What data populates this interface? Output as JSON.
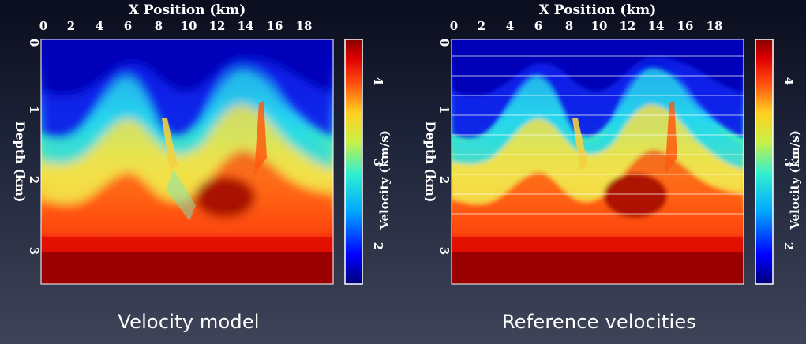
{
  "colors": {
    "low": "#0000aa",
    "mid_low": "#1f70ff",
    "mid": "#35e8c0",
    "mid_high": "#f5e64a",
    "high": "#ff3a10",
    "max": "#8f0000"
  },
  "panels": [
    {
      "id": "left",
      "title": "X Position (km)",
      "ylabel": "Depth (km)",
      "colorbar_label": "Velocity (km/s)",
      "caption": "Velocity model"
    },
    {
      "id": "right",
      "title": "X Position (km)",
      "ylabel": "Depth (km)",
      "colorbar_label": "Velocity (km/s)",
      "caption": "Reference velocities"
    }
  ],
  "x_ticks": [
    "0",
    "2",
    "4",
    "6",
    "8",
    "10",
    "12",
    "14",
    "16",
    "18"
  ],
  "y_ticks": [
    "0",
    "1",
    "2",
    "3"
  ],
  "cb_ticks": [
    "2",
    "3",
    "4"
  ]
}
